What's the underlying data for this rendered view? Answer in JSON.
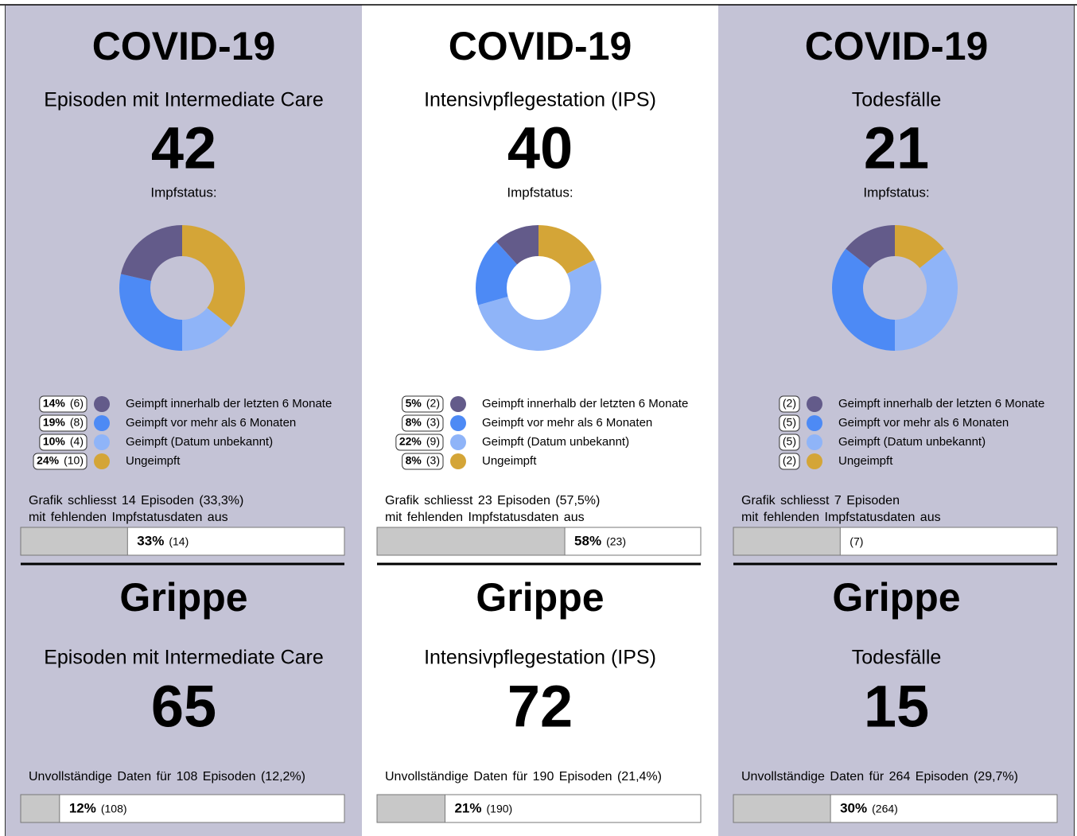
{
  "panels": [
    {
      "covid_title": "COVID-19",
      "covid_subtitle": "Episoden mit Intermediate Care",
      "covid_count": 42,
      "status_label": "Impfstatus:",
      "excluded_note": [
        "Grafik schliesst 14 Episoden (33,3%)",
        "mit fehlenden Impfstatusdaten aus"
      ],
      "excluded_bar": {
        "value": 33,
        "value_label": "33%",
        "count_label": "(14)",
        "xlim": [
          0,
          100
        ]
      },
      "flu_title": "Grippe",
      "flu_subtitle": "Episoden mit Intermediate Care",
      "flu_count": 65,
      "incomplete_note": "Unvollständige Daten für 108 Episoden (12,2%)",
      "incomplete_bar": {
        "value": 12,
        "value_label": "12%",
        "count_label": "(108)",
        "xlim": [
          0,
          100
        ]
      }
    },
    {
      "covid_title": "COVID-19",
      "covid_subtitle": "Intensivpflegestation (IPS)",
      "covid_count": 40,
      "status_label": "Impfstatus:",
      "excluded_note": [
        "Grafik schliesst 23 Episoden (57,5%)",
        "mit fehlenden Impfstatusdaten aus"
      ],
      "excluded_bar": {
        "value": 58,
        "value_label": "58%",
        "count_label": "(23)",
        "xlim": [
          0,
          100
        ]
      },
      "flu_title": "Grippe",
      "flu_subtitle": "Intensivpflegestation (IPS)",
      "flu_count": 72,
      "incomplete_note": "Unvollständige Daten für 190 Episoden (21,4%)",
      "incomplete_bar": {
        "value": 21,
        "value_label": "21%",
        "count_label": "(190)",
        "xlim": [
          0,
          100
        ]
      }
    },
    {
      "covid_title": "COVID-19",
      "covid_subtitle": "Todesfälle",
      "covid_count": 21,
      "status_label": "Impfstatus:",
      "excluded_note": [
        "Grafik schliesst 7 Episoden",
        "mit fehlenden Impfstatusdaten aus"
      ],
      "excluded_bar": {
        "value": 33,
        "count_label": "(7)",
        "xlim": [
          0,
          100
        ]
      },
      "flu_title": "Grippe",
      "flu_subtitle": "Todesfälle",
      "flu_count": 15,
      "incomplete_note": "Unvollständige Daten für 264 Episoden (29,7%)",
      "incomplete_bar": {
        "value": 30,
        "value_label": "30%",
        "count_label": "(264)",
        "xlim": [
          0,
          100
        ]
      }
    }
  ],
  "chart_data": [
    {
      "type": "donut",
      "categories": [
        "Geimpft innerhalb der letzten 6 Monate",
        "Geimpft vor mehr als 6 Monaten",
        "Geimpft (Datum unbekannt)",
        "Ungeimpft"
      ],
      "values": [
        6,
        8,
        4,
        10
      ],
      "value_labels": [
        "(6)",
        "(8)",
        "(4)",
        "(10)"
      ],
      "percent_labels": [
        "14%",
        "19%",
        "10%",
        "24%"
      ],
      "colors": [
        "#635b8a",
        "#4d8af5",
        "#8fb4f8",
        "#d4a537"
      ]
    },
    {
      "type": "donut",
      "categories": [
        "Geimpft innerhalb der letzten 6 Monate",
        "Geimpft vor mehr als 6 Monaten",
        "Geimpft (Datum unbekannt)",
        "Ungeimpft"
      ],
      "values": [
        2,
        3,
        9,
        3
      ],
      "value_labels": [
        "(2)",
        "(3)",
        "(9)",
        "(3)"
      ],
      "percent_labels": [
        "5%",
        "8%",
        "22%",
        "8%"
      ],
      "colors": [
        "#635b8a",
        "#4d8af5",
        "#8fb4f8",
        "#d4a537"
      ]
    },
    {
      "type": "donut",
      "categories": [
        "Geimpft innerhalb der letzten 6 Monate",
        "Geimpft vor mehr als 6 Monaten",
        "Geimpft (Datum unbekannt)",
        "Ungeimpft"
      ],
      "values": [
        2,
        5,
        5,
        2
      ],
      "value_labels": [
        "(2)",
        "(5)",
        "(5)",
        "(2)"
      ],
      "colors": [
        "#635b8a",
        "#4d8af5",
        "#8fb4f8",
        "#d4a537"
      ]
    }
  ]
}
